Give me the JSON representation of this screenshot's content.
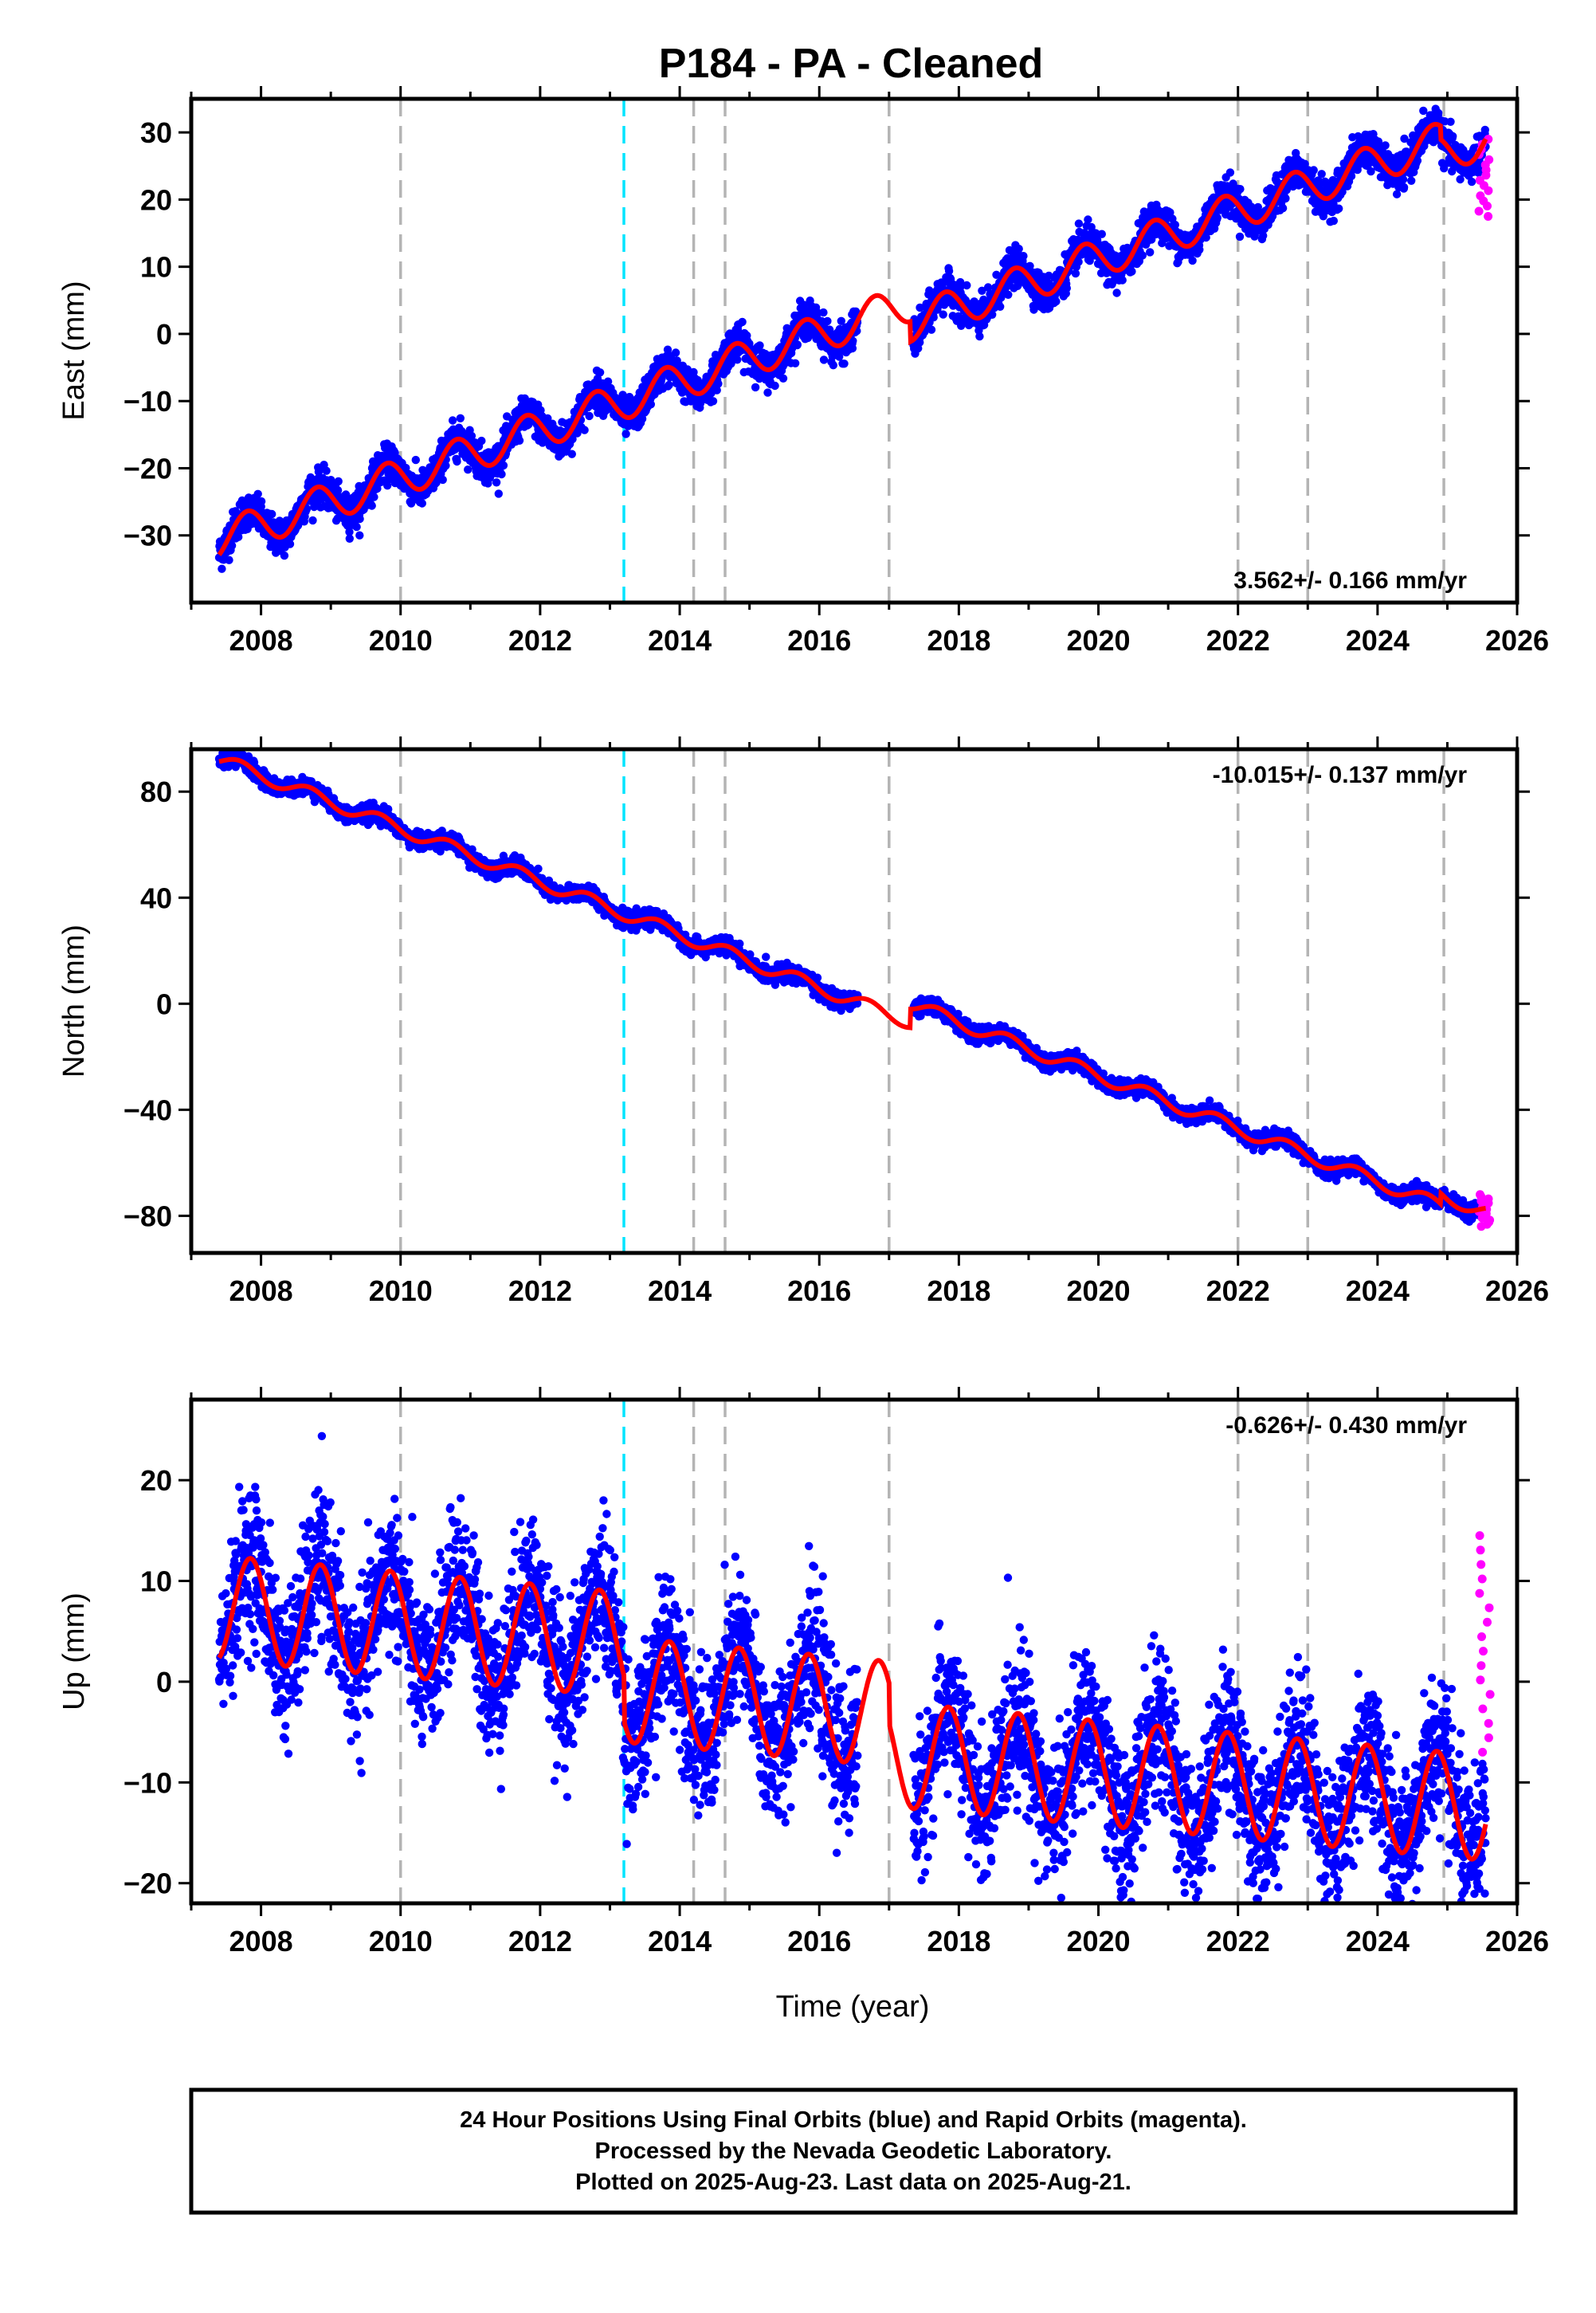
{
  "title": "P184  - PA - Cleaned",
  "footer": {
    "line1": "24 Hour Positions Using Final Orbits (blue) and Rapid Orbits (magenta).",
    "line2": "Processed by the Nevada Geodetic Laboratory.",
    "line3": "Plotted on 2025-Aug-23. Last data on 2025-Aug-21."
  },
  "colors": {
    "final_orbits": "#0000ff",
    "rapid_orbits": "#ff00ff",
    "model_fit": "#ff0000",
    "event_line": "#b4b4b4",
    "antenna_change_line": "#00e5ff"
  },
  "chart_data": [
    {
      "type": "scatter",
      "panel": "east",
      "ylabel": "East (mm)",
      "xlabel": "",
      "xlim": [
        2007.0,
        2026.0
      ],
      "ylim": [
        -40,
        35
      ],
      "xticks": [
        2008,
        2010,
        2012,
        2014,
        2016,
        2018,
        2020,
        2022,
        2024,
        2026
      ],
      "yticks": [
        -30,
        -20,
        -10,
        0,
        10,
        20,
        30
      ],
      "rate_label": "3.562+/- 0.166 mm/yr",
      "rate_label_position": "bottom-right",
      "data_range": [
        2007.4,
        2025.55
      ],
      "gaps": [
        [
          2016.55,
          2017.35
        ]
      ],
      "model": {
        "rate_mm_per_yr": 3.562,
        "ref_year": 2016.7,
        "ref_value": 2.5,
        "annual_amplitude": 2.8,
        "annual_phase_year": 0.55,
        "offsets": [
          {
            "year": 2017.3,
            "value": -3.0
          },
          {
            "year": 2024.9,
            "value": -2.0
          }
        ]
      },
      "scatter_sd": 1.3,
      "rapid_orbits": {
        "x_range": [
          2025.45,
          2025.62
        ],
        "y_range": [
          17.5,
          29
        ]
      },
      "grid_x": [
        2010.0,
        2014.2,
        2014.65,
        2017.0,
        2022.0,
        2023.0,
        2024.95
      ],
      "cyan_x": [
        2013.2
      ]
    },
    {
      "type": "scatter",
      "panel": "north",
      "ylabel": "North (mm)",
      "xlabel": "",
      "xlim": [
        2007.0,
        2026.0
      ],
      "ylim": [
        -94,
        96
      ],
      "xticks": [
        2008,
        2010,
        2012,
        2014,
        2016,
        2018,
        2020,
        2022,
        2024,
        2026
      ],
      "yticks": [
        -80,
        -40,
        0,
        40,
        80
      ],
      "rate_label": "-10.015+/- 0.137 mm/yr",
      "rate_label_position": "top-right",
      "data_range": [
        2007.4,
        2025.55
      ],
      "gaps": [
        [
          2016.55,
          2017.35
        ]
      ],
      "model": {
        "rate_mm_per_yr": -10.015,
        "ref_year": 2016.7,
        "ref_value": -1.0,
        "annual_amplitude": 2.5,
        "annual_phase_year": 0.45,
        "offsets": [
          {
            "year": 2017.3,
            "value": 7.0
          },
          {
            "year": 2024.9,
            "value": 4.0
          }
        ]
      },
      "scatter_sd": 1.5,
      "rapid_orbits": {
        "x_range": [
          2025.45,
          2025.62
        ],
        "y_range": [
          -84,
          -72
        ]
      },
      "grid_x": [
        2010.0,
        2014.2,
        2014.65,
        2017.0,
        2022.0,
        2023.0,
        2024.95
      ],
      "cyan_x": [
        2013.2
      ]
    },
    {
      "type": "scatter",
      "panel": "up",
      "ylabel": "Up (mm)",
      "xlabel": "Time (year)",
      "xlim": [
        2007.0,
        2026.0
      ],
      "ylim": [
        -22,
        28
      ],
      "xticks": [
        2008,
        2010,
        2012,
        2014,
        2016,
        2018,
        2020,
        2022,
        2024,
        2026
      ],
      "yticks": [
        -20,
        -10,
        0,
        10,
        20
      ],
      "rate_label": "-0.626+/- 0.430 mm/yr",
      "rate_label_position": "top-right",
      "data_range": [
        2007.4,
        2025.55
      ],
      "gaps": [
        [
          2016.55,
          2017.35
        ]
      ],
      "model": {
        "rate_mm_per_yr": -0.626,
        "ref_year": 2016.7,
        "ref_value": 1.5,
        "annual_amplitude": 5.2,
        "annual_phase_year": 0.6,
        "offsets": [
          {
            "year": 2013.2,
            "value": -4.5
          },
          {
            "year": 2017.0,
            "value": -4.0
          }
        ]
      },
      "scatter_sd": 3.6,
      "rapid_orbits": {
        "x_range": [
          2025.45,
          2025.62
        ],
        "y_range": [
          -7,
          14.5
        ]
      },
      "grid_x": [
        2010.0,
        2014.2,
        2014.65,
        2017.0,
        2022.0,
        2023.0,
        2024.95
      ],
      "cyan_x": [
        2013.2
      ]
    }
  ]
}
